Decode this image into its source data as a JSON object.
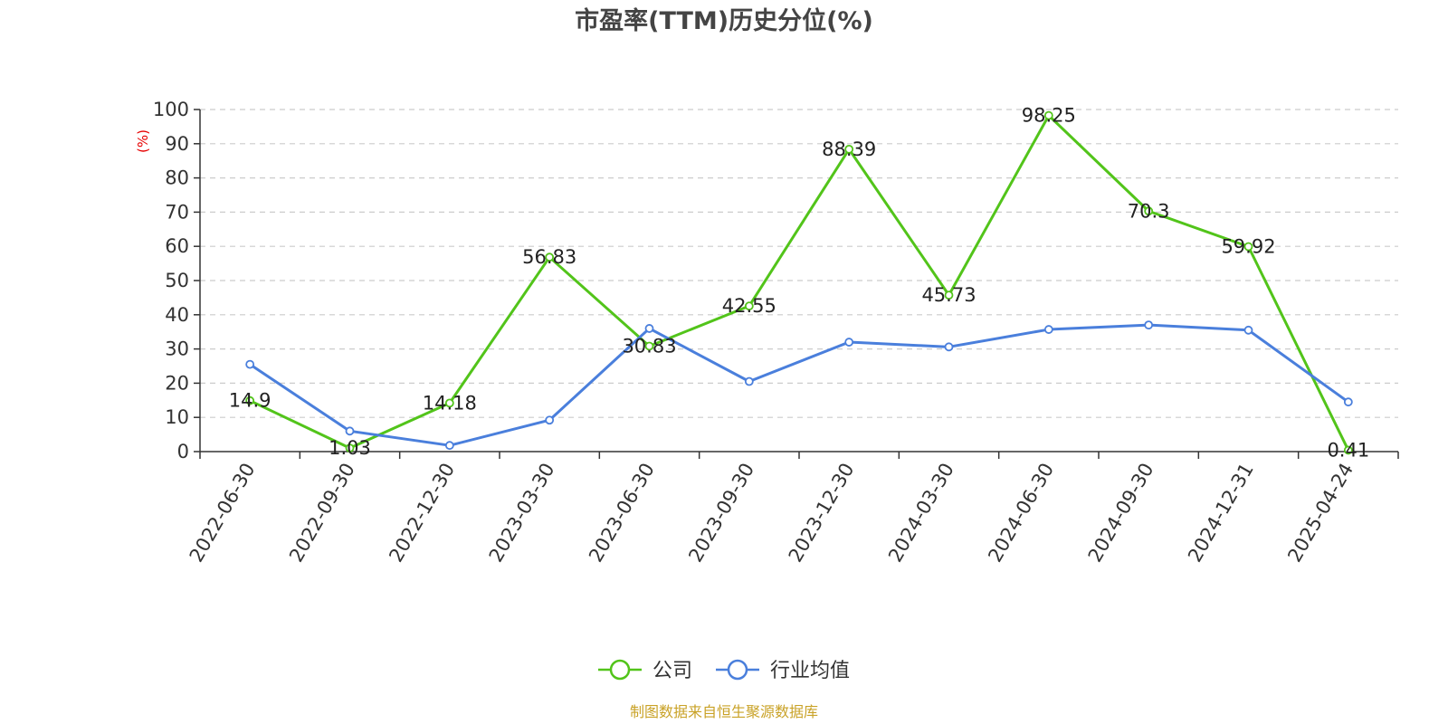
{
  "colors": {
    "company": "#52c41a",
    "industry": "#4a7fdc",
    "title": "#444444",
    "axis_label": "#e60000",
    "source": "#c9a227",
    "grid": "#cccccc"
  },
  "chart_data": {
    "type": "line",
    "title": "市盈率(TTM)历史分位(%)",
    "xlabel": "",
    "ylabel": "(%)",
    "ylim": [
      0,
      100
    ],
    "yticks": [
      0,
      10,
      20,
      30,
      40,
      50,
      60,
      70,
      80,
      90,
      100
    ],
    "grid": true,
    "legend_position": "bottom-center",
    "categories": [
      "2022-06-30",
      "2022-09-30",
      "2022-12-30",
      "2023-03-30",
      "2023-06-30",
      "2023-09-30",
      "2023-12-30",
      "2024-03-30",
      "2024-06-30",
      "2024-09-30",
      "2024-12-31",
      "2025-04-24"
    ],
    "series": [
      {
        "name": "公司",
        "color": "#52c41a",
        "values": [
          14.9,
          1.03,
          14.18,
          56.83,
          30.83,
          42.55,
          88.39,
          45.73,
          98.25,
          70.3,
          59.92,
          0.41
        ],
        "labels": [
          "14.9",
          "1.03",
          "14.18",
          "56.83",
          "30.83",
          "42.55",
          "88.39",
          "45.73",
          "98.25",
          "70.3",
          "59.92",
          "0.41"
        ]
      },
      {
        "name": "行业均值",
        "color": "#4a7fdc",
        "values": [
          25.5,
          6.0,
          1.8,
          9.2,
          36.0,
          20.5,
          32.0,
          30.6,
          35.7,
          37.0,
          35.5,
          14.5
        ]
      }
    ],
    "source": "制图数据来自恒生聚源数据库"
  }
}
